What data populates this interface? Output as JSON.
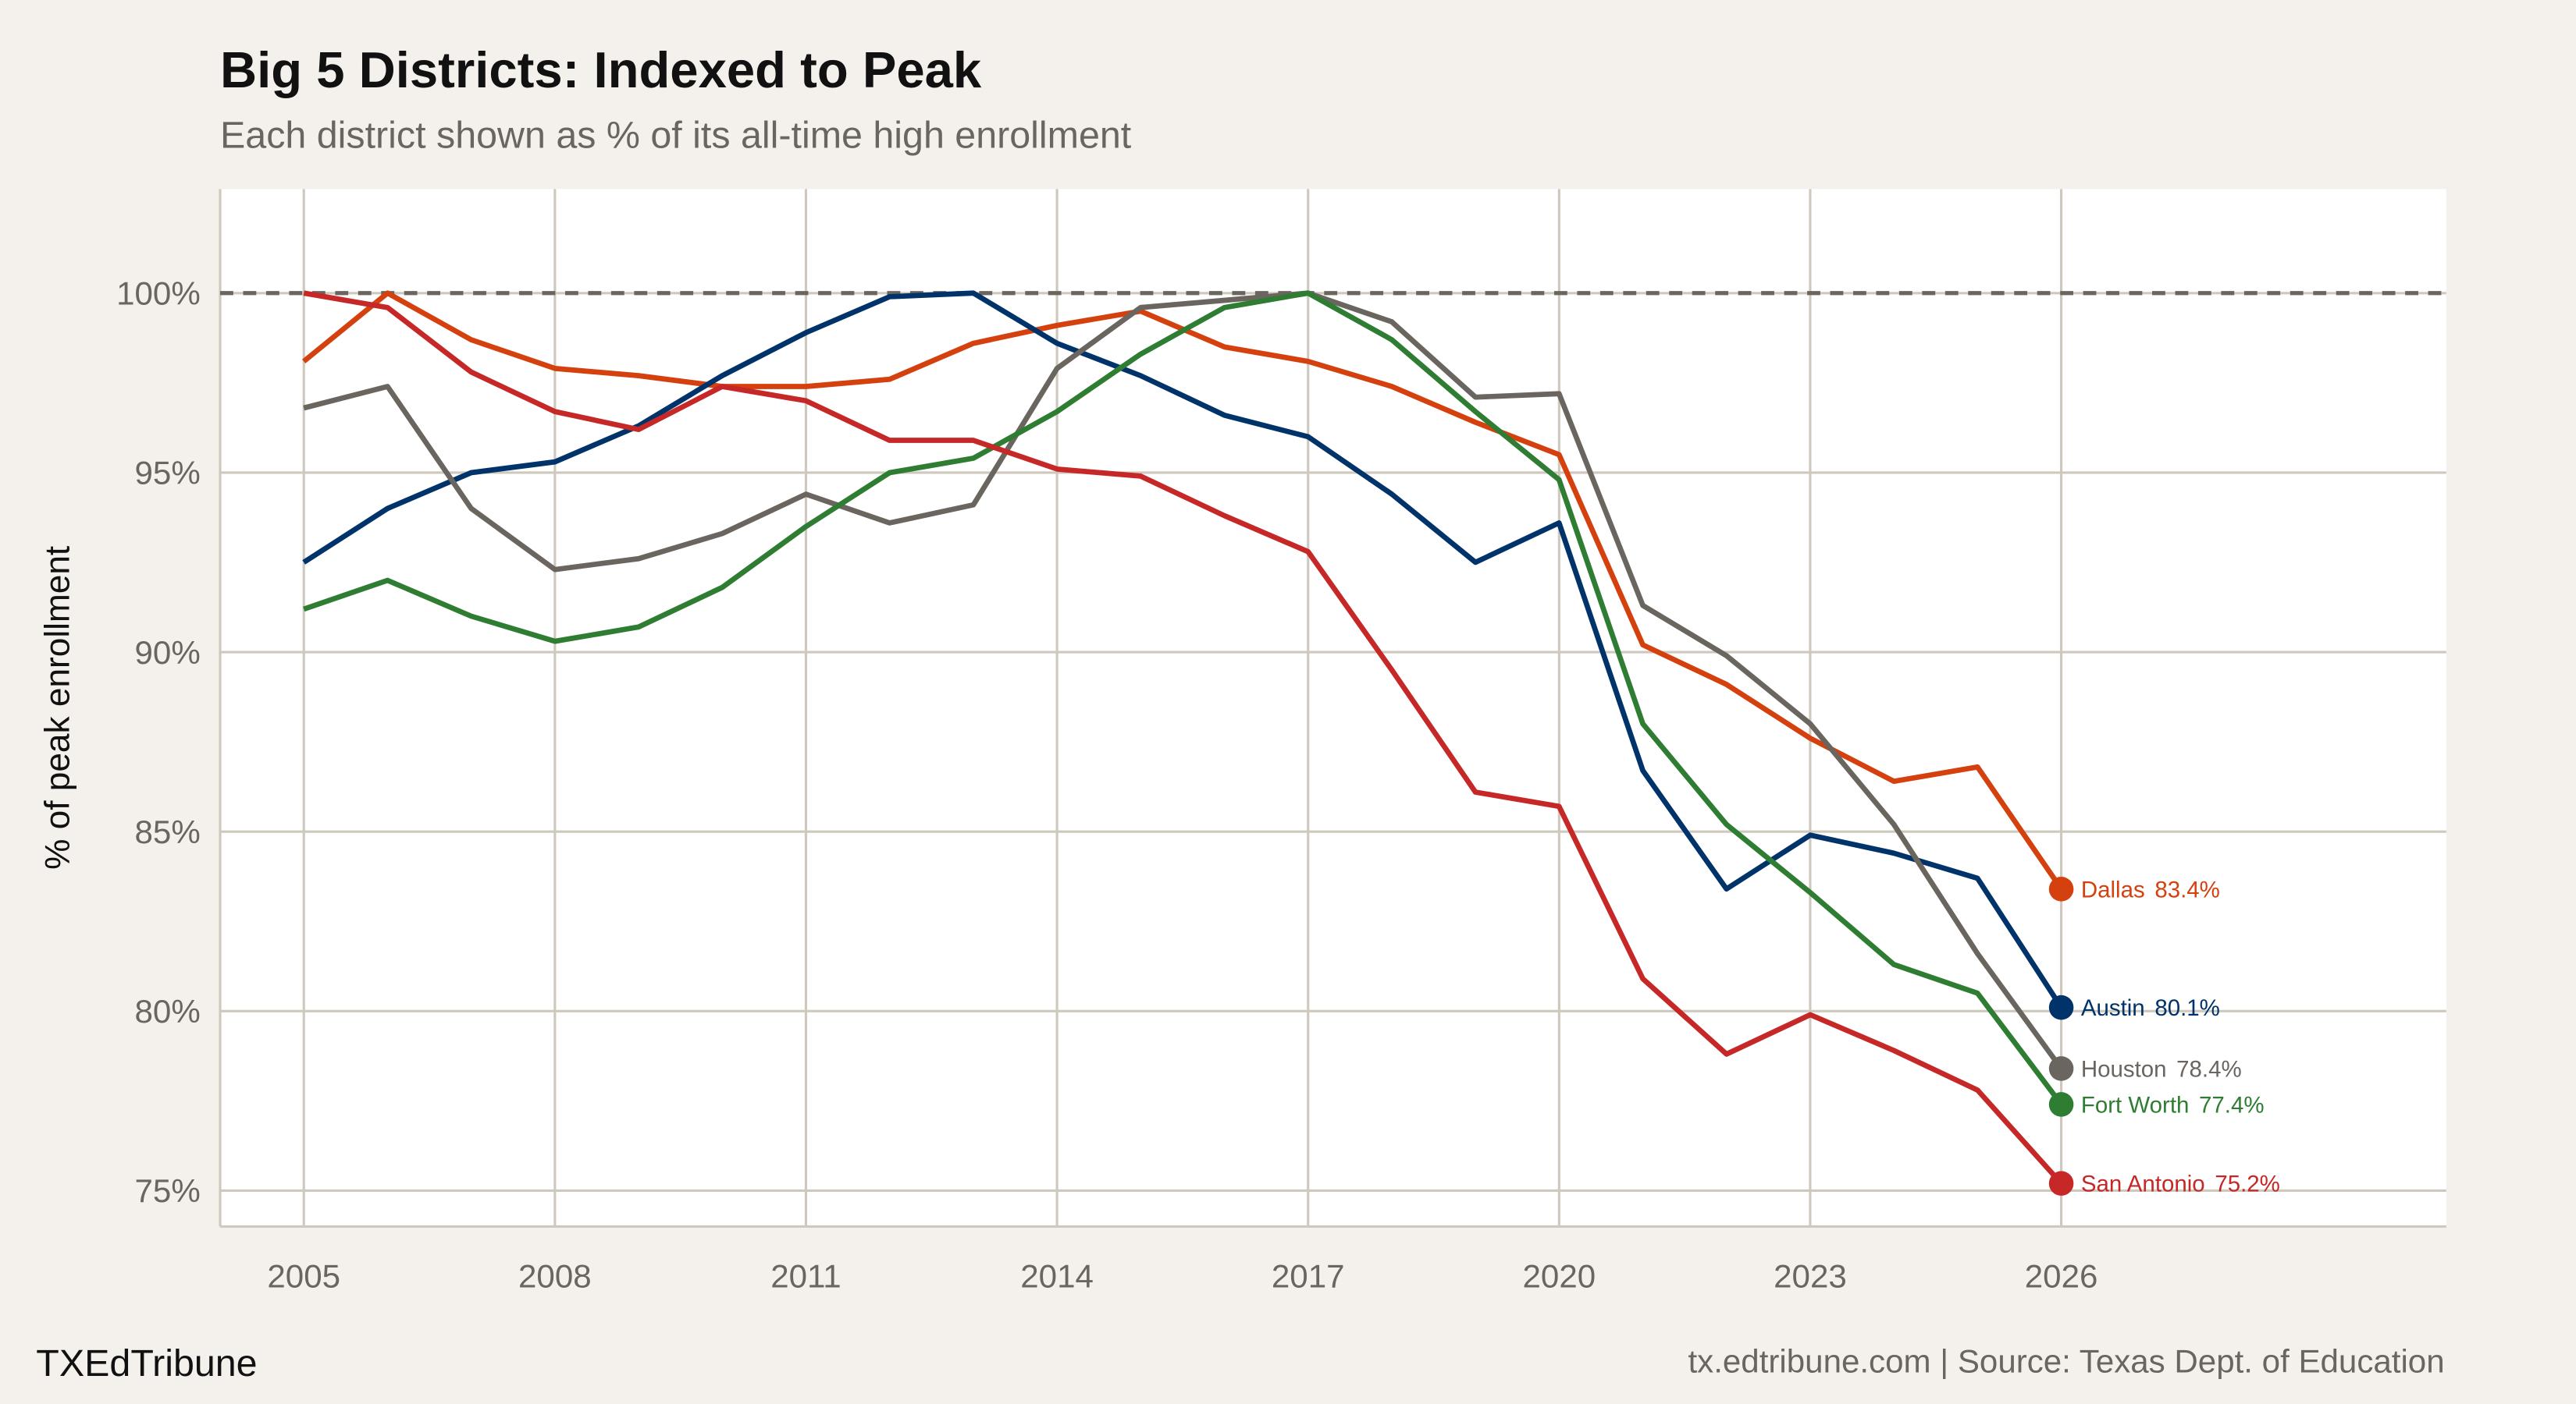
{
  "chart_data": {
    "type": "line",
    "title": "Big 5 Districts: Indexed to Peak",
    "subtitle": "Each district shown as % of its all-time high enrollment",
    "xlabel": "",
    "ylabel": "% of peak enrollment",
    "x": [
      2005,
      2006,
      2007,
      2008,
      2009,
      2010,
      2011,
      2012,
      2013,
      2014,
      2015,
      2016,
      2017,
      2018,
      2019,
      2020,
      2021,
      2022,
      2023,
      2024,
      2025,
      2026
    ],
    "xticks": [
      "2005",
      "2008",
      "2011",
      "2014",
      "2017",
      "2020",
      "2023",
      "2026"
    ],
    "yticks": [
      "75%",
      "80%",
      "85%",
      "90%",
      "95%",
      "100%"
    ],
    "xlim": [
      2004,
      2030.6
    ],
    "ylim": [
      74,
      102.9
    ],
    "grid": true,
    "reference_line": {
      "y": 100,
      "style": "dashed",
      "color": "#6b6560"
    },
    "series": [
      {
        "name": "Dallas",
        "color": "#d4400e",
        "end_label": "83.4%",
        "values": [
          98.1,
          100,
          98.7,
          97.9,
          97.7,
          97.4,
          97.4,
          97.6,
          98.6,
          99.1,
          99.5,
          98.5,
          98.1,
          97.4,
          96.4,
          95.5,
          90.2,
          89.1,
          87.6,
          86.4,
          86.8,
          83.4
        ]
      },
      {
        "name": "Austin",
        "color": "#00336a",
        "end_label": "80.1%",
        "values": [
          92.5,
          94.0,
          95.0,
          95.3,
          96.3,
          97.7,
          98.9,
          99.9,
          100,
          98.6,
          97.7,
          96.6,
          96.0,
          94.4,
          92.5,
          93.6,
          86.7,
          83.4,
          84.9,
          84.4,
          83.7,
          80.1
        ]
      },
      {
        "name": "Houston",
        "color": "#6b6560",
        "end_label": "78.4%",
        "values": [
          96.8,
          97.4,
          94.0,
          92.3,
          92.6,
          93.3,
          94.4,
          93.6,
          94.1,
          97.9,
          99.6,
          99.8,
          100,
          99.2,
          97.1,
          97.2,
          91.3,
          89.9,
          88.0,
          85.2,
          81.6,
          78.4
        ]
      },
      {
        "name": "Fort Worth",
        "color": "#2e7d32",
        "end_label": "77.4%",
        "values": [
          91.2,
          92.0,
          91.0,
          90.3,
          90.7,
          91.8,
          93.5,
          95.0,
          95.4,
          96.7,
          98.3,
          99.6,
          100,
          98.7,
          96.7,
          94.8,
          88.0,
          85.2,
          83.3,
          81.3,
          80.5,
          77.4
        ]
      },
      {
        "name": "San Antonio",
        "color": "#c62828",
        "end_label": "75.2%",
        "values": [
          100,
          99.6,
          97.8,
          96.7,
          96.2,
          97.4,
          97.0,
          95.9,
          95.9,
          95.1,
          94.9,
          93.8,
          92.8,
          89.5,
          86.1,
          85.7,
          80.9,
          78.8,
          79.9,
          78.9,
          77.8,
          75.2
        ]
      }
    ]
  },
  "footer": {
    "brand": "TXEdTribune",
    "source": "tx.edtribune.com | Source: Texas Dept. of Education"
  }
}
